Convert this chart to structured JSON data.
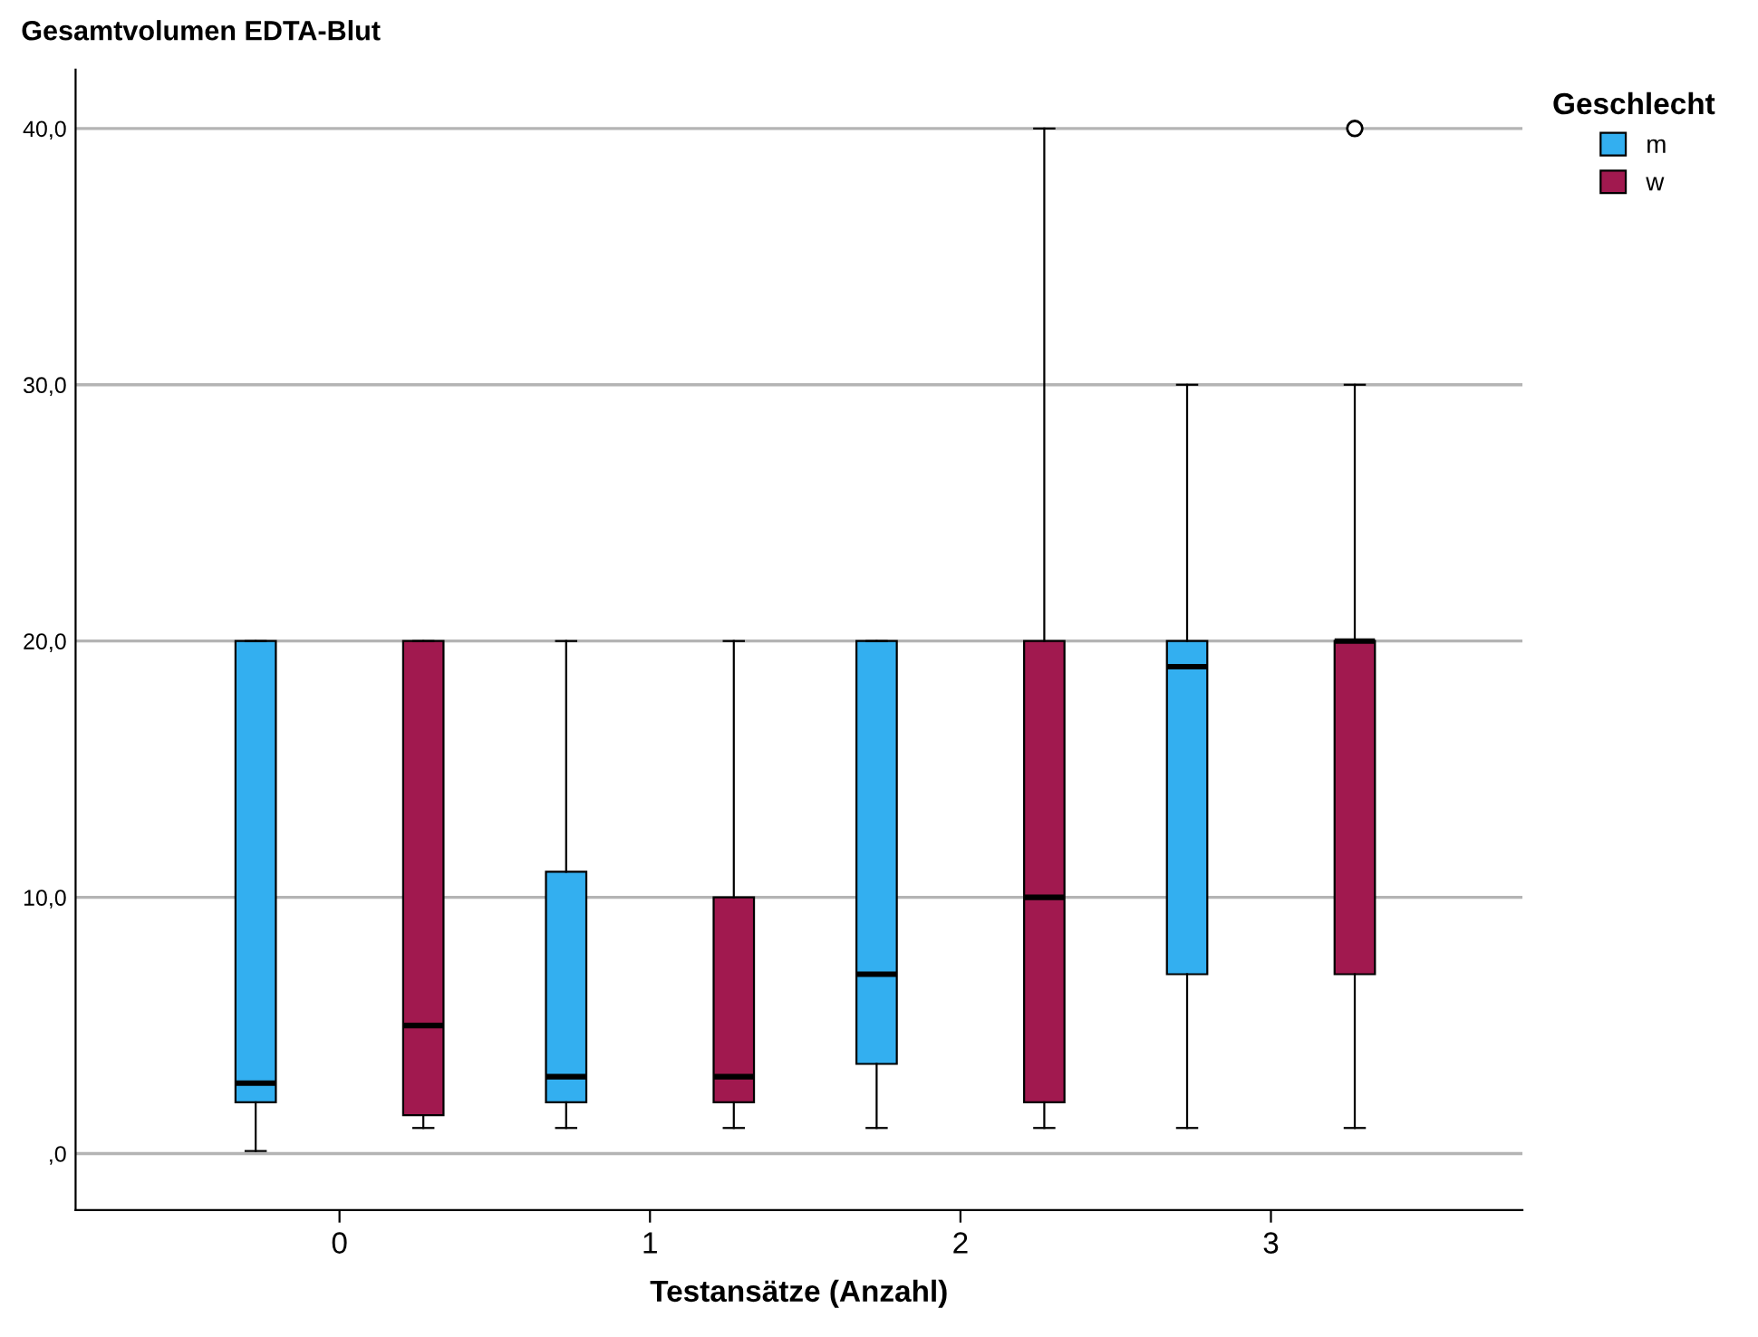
{
  "chart_data": {
    "type": "box",
    "title": "Gesamtvolumen EDTA-Blut",
    "xlabel": "Testansätze (Anzahl)",
    "legend_title": "Geschlecht",
    "categories": [
      "0",
      "1",
      "2",
      "3"
    ],
    "series": [
      {
        "name": "m",
        "color": "#33aff0",
        "boxes": [
          {
            "low": 0.1,
            "q1": 2,
            "median": 2.75,
            "q3": 20,
            "high": 20
          },
          {
            "low": 1,
            "q1": 2,
            "median": 3,
            "q3": 11,
            "high": 20
          },
          {
            "low": 1,
            "q1": 3.5,
            "median": 7,
            "q3": 20,
            "high": 20
          },
          {
            "low": 1,
            "q1": 7,
            "median": 19,
            "q3": 20,
            "high": 30
          }
        ]
      },
      {
        "name": "w",
        "color": "#a1194f",
        "boxes": [
          {
            "low": 1,
            "q1": 1.5,
            "median": 5,
            "q3": 20,
            "high": 20
          },
          {
            "low": 1,
            "q1": 2,
            "median": 3,
            "q3": 10,
            "high": 20
          },
          {
            "low": 1,
            "q1": 2,
            "median": 10,
            "q3": 20,
            "high": 40
          },
          {
            "low": 1,
            "q1": 7,
            "median": 20,
            "q3": 20,
            "high": 30,
            "outliers": [
              40
            ]
          }
        ]
      }
    ],
    "ylim": [
      -2.2,
      42.3
    ],
    "yticks": [
      {
        "value": 0,
        "label": ",0"
      },
      {
        "value": 10,
        "label": "10,0"
      },
      {
        "value": 20,
        "label": "20,0"
      },
      {
        "value": 30,
        "label": "30,0"
      },
      {
        "value": 40,
        "label": "40,0"
      }
    ],
    "grid": "y",
    "legend": "top right"
  }
}
